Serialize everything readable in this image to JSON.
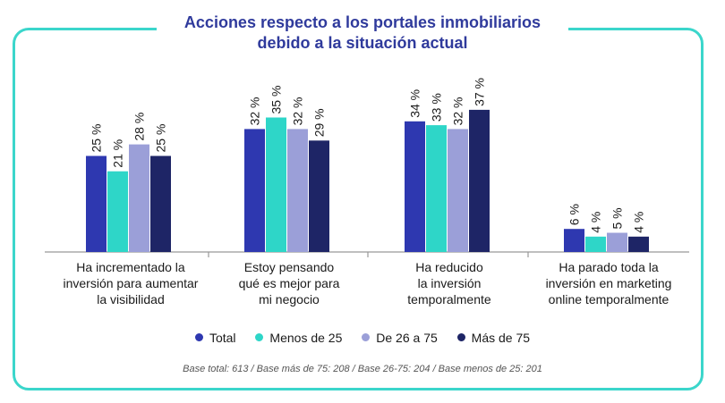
{
  "chart_data": {
    "type": "bar",
    "title_line1": "Acciones respecto a los portales inmobiliarios",
    "title_line2": "debido a la situación actual",
    "categories": [
      [
        "Ha incrementado la",
        "inversión para aumentar",
        "la visibilidad"
      ],
      [
        "Estoy pensando",
        "qué es mejor para",
        "mi negocio"
      ],
      [
        "Ha reducido",
        "la inversión",
        "temporalmente"
      ],
      [
        "Ha parado toda la",
        "inversión en marketing",
        "online temporalmente"
      ]
    ],
    "series": [
      {
        "name": "Total",
        "color": "#2e38b0",
        "values": [
          25,
          32,
          34,
          6
        ]
      },
      {
        "name": "Menos de 25",
        "color": "#2ed6c8",
        "values": [
          21,
          35,
          33,
          4
        ]
      },
      {
        "name": "De 26 a 75",
        "color": "#9b9fd8",
        "values": [
          28,
          32,
          32,
          5
        ]
      },
      {
        "name": "Más de 75",
        "color": "#1e2566",
        "values": [
          25,
          29,
          37,
          4
        ]
      }
    ],
    "value_suffix": " %",
    "ylim": [
      0,
      40
    ],
    "grid": false,
    "legend_position": "bottom"
  },
  "footnote": "Base total: 613 / Base más de 75: 208 / Base 26-75: 204 / Base menos de 25: 201",
  "colors": {
    "frame": "#3bd6cb",
    "title": "#2f3a9c",
    "axis": "#999999"
  }
}
